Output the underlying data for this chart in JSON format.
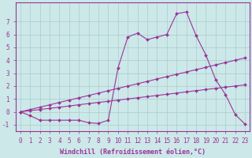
{
  "line1_x": [
    0,
    1,
    2,
    3,
    4,
    5,
    6,
    7,
    8,
    9,
    10,
    11,
    12,
    13,
    14,
    15,
    16,
    17,
    18,
    19,
    20,
    21,
    22,
    23
  ],
  "line1_y": [
    0.0,
    -0.3,
    -0.65,
    -0.65,
    -0.65,
    -0.65,
    -0.65,
    -0.85,
    -0.9,
    -0.65,
    3.4,
    5.8,
    6.1,
    5.6,
    5.8,
    6.0,
    7.6,
    7.75,
    5.9,
    4.4,
    2.5,
    1.35,
    -0.2,
    -0.95
  ],
  "line2_x": [
    0,
    1,
    2,
    3,
    4,
    5,
    6,
    7,
    8,
    9,
    10,
    11,
    12,
    13,
    14,
    15,
    16,
    17,
    18,
    19,
    20,
    21,
    22,
    23
  ],
  "line2_y": [
    0.0,
    0.18,
    0.36,
    0.54,
    0.73,
    0.91,
    1.09,
    1.27,
    1.45,
    1.64,
    1.82,
    2.0,
    2.18,
    2.36,
    2.55,
    2.73,
    2.91,
    3.09,
    3.27,
    3.45,
    3.64,
    3.82,
    4.0,
    4.18
  ],
  "line3_x": [
    0,
    1,
    2,
    3,
    4,
    5,
    6,
    7,
    8,
    9,
    10,
    11,
    12,
    13,
    14,
    15,
    16,
    17,
    18,
    19,
    20,
    21,
    22,
    23
  ],
  "line3_y": [
    0.0,
    0.09,
    0.18,
    0.27,
    0.36,
    0.45,
    0.55,
    0.64,
    0.73,
    0.82,
    0.91,
    1.0,
    1.09,
    1.18,
    1.27,
    1.36,
    1.45,
    1.55,
    1.64,
    1.73,
    1.82,
    1.91,
    2.0,
    2.09
  ],
  "color": "#993399",
  "bg_color": "#cce8e8",
  "grid_color": "#aacccc",
  "xlabel": "Windchill (Refroidissement éolien,°C)",
  "xlim": [
    -0.5,
    23.5
  ],
  "ylim": [
    -1.5,
    8.5
  ],
  "yticks": [
    -1,
    0,
    1,
    2,
    3,
    4,
    5,
    6,
    7
  ],
  "xticks": [
    0,
    1,
    2,
    3,
    4,
    5,
    6,
    7,
    8,
    9,
    10,
    11,
    12,
    13,
    14,
    15,
    16,
    17,
    18,
    19,
    20,
    21,
    22,
    23
  ],
  "markersize": 2.0,
  "linewidth": 0.8,
  "xlabel_fontsize": 6.0,
  "tick_fontsize": 5.5
}
